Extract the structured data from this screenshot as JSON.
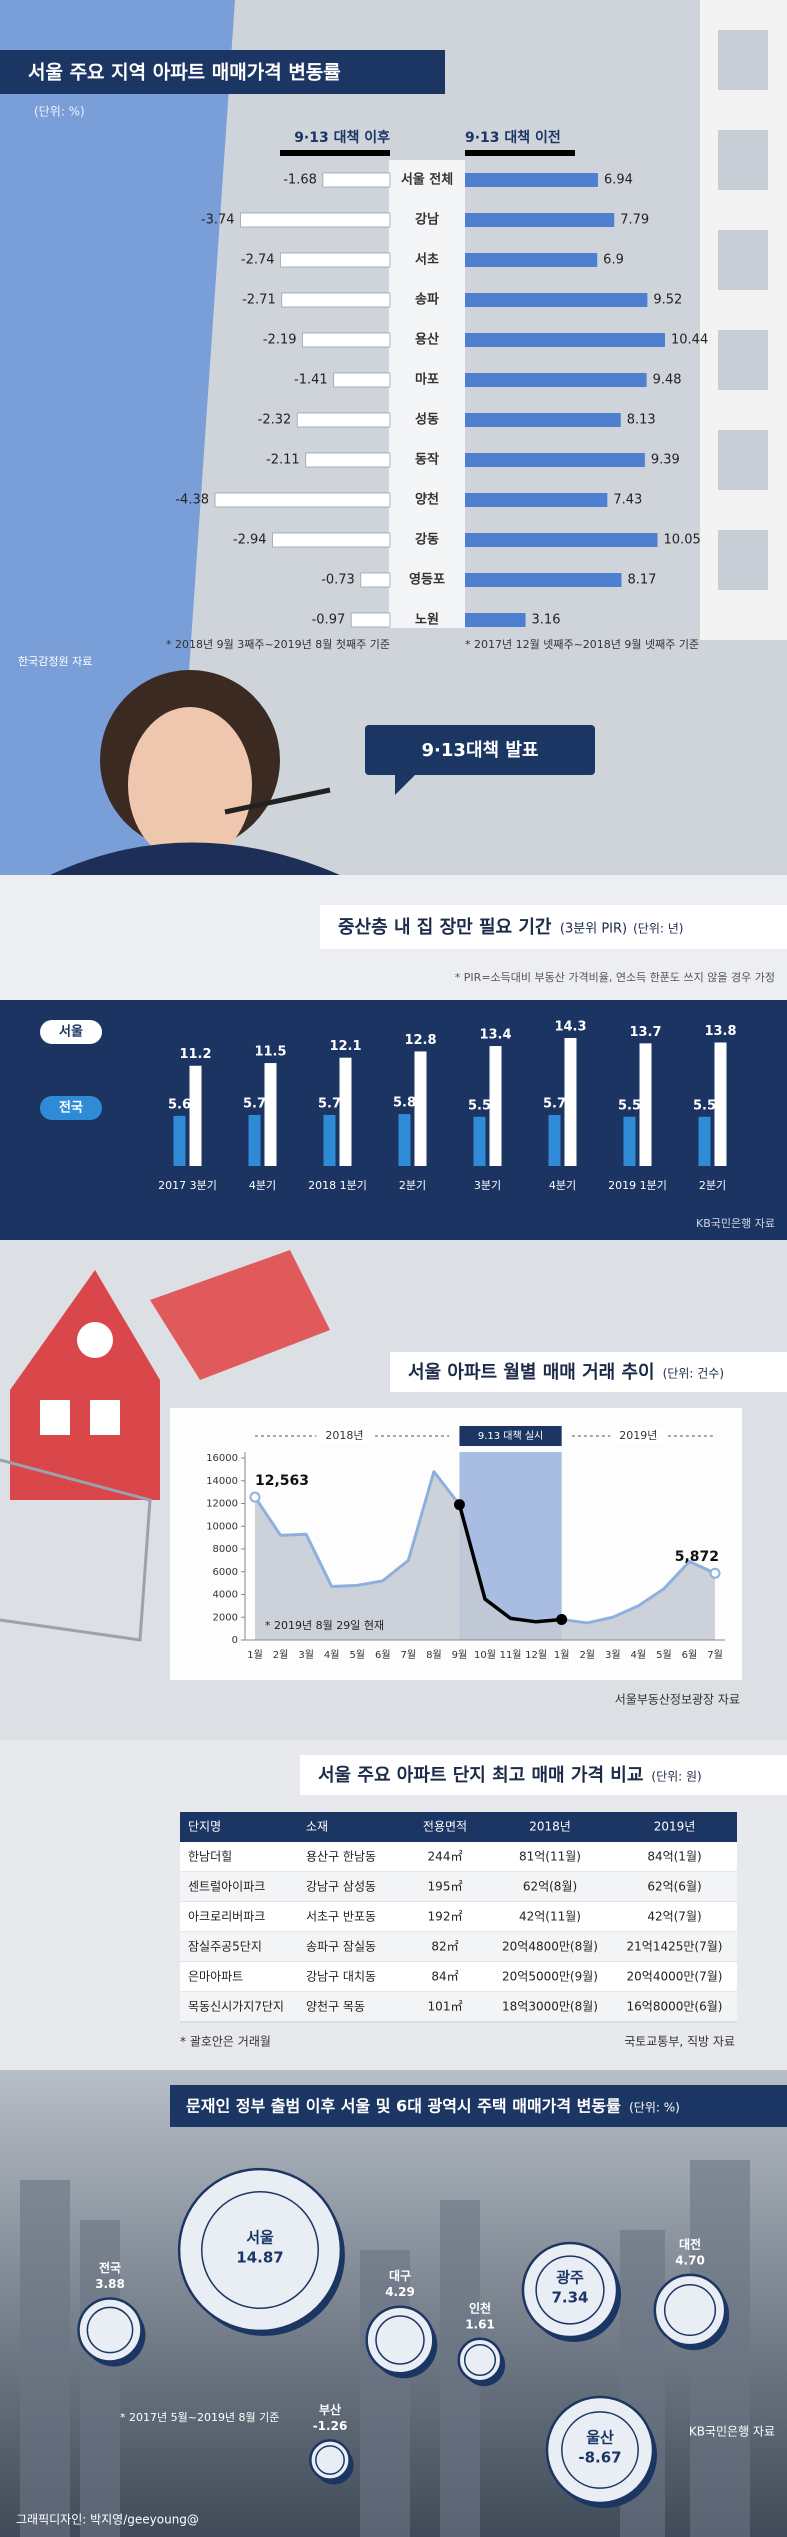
{
  "chart_data": [
    {
      "type": "bar",
      "orientation": "horizontal",
      "title": "서울 주요 지역 아파트 매매가격 변동률",
      "unit": "(단위: %)",
      "categories": [
        "서울 전체",
        "강남",
        "서초",
        "송파",
        "용산",
        "마포",
        "성동",
        "동작",
        "양천",
        "강동",
        "영등포",
        "노원"
      ],
      "series": [
        {
          "name": "9·13 대책 이전",
          "color": "#4f7fd0",
          "values": [
            6.94,
            7.79,
            6.9,
            9.52,
            10.44,
            9.48,
            8.13,
            9.39,
            7.43,
            10.05,
            8.17,
            3.16
          ]
        },
        {
          "name": "9·13 대책 이후",
          "color": "#ffffff",
          "values": [
            -1.68,
            -3.74,
            -2.74,
            -2.71,
            -2.19,
            -1.41,
            -2.32,
            -2.11,
            -4.38,
            -2.94,
            -0.73,
            -0.97
          ]
        }
      ],
      "notes": [
        "* 2017년 12월 넷째주~2018년 9월 넷째주 기준",
        "* 2018년 9월 3째주~2019년 8월 첫째주 기준"
      ],
      "source": "한국감정원 자료"
    },
    {
      "type": "bar",
      "orientation": "vertical",
      "title": "중산층 내 집 장만 필요 기간",
      "subtitle": "(3분위 PIR)",
      "unit": "(단위: 년)",
      "note": "* PIR=소득대비 부동산 가격비율, 연소득 한푼도 쓰지 않을 경우 가정",
      "categories": [
        "2017 3분기",
        "4분기",
        "2018 1분기",
        "2분기",
        "3분기",
        "4분기",
        "2019 1분기",
        "2분기"
      ],
      "series": [
        {
          "name": "서울",
          "color": "#ffffff",
          "values": [
            11.2,
            11.5,
            12.1,
            12.8,
            13.4,
            14.3,
            13.7,
            13.8
          ]
        },
        {
          "name": "전국",
          "color": "#2f8bd6",
          "values": [
            5.6,
            5.7,
            5.7,
            5.8,
            5.5,
            5.7,
            5.5,
            5.5
          ]
        }
      ],
      "source": "KB국민은행 자료"
    },
    {
      "type": "line",
      "title": "서울 아파트 월별 매매 거래 추이",
      "unit": "(단위: 건수)",
      "categories": [
        "1월",
        "2월",
        "3월",
        "4월",
        "5월",
        "6월",
        "7월",
        "8월",
        "9월",
        "10월",
        "11월",
        "12월",
        "1월",
        "2월",
        "3월",
        "4월",
        "5월",
        "6월",
        "7월"
      ],
      "values": [
        12563,
        9200,
        9300,
        4700,
        4800,
        5200,
        7000,
        14800,
        11900,
        3600,
        1900,
        1600,
        1800,
        1500,
        2000,
        3000,
        4500,
        6900,
        5872
      ],
      "value_labels": [
        "12,563",
        null,
        null,
        null,
        null,
        null,
        null,
        null,
        null,
        null,
        null,
        null,
        null,
        null,
        null,
        null,
        null,
        null,
        "5,872"
      ],
      "color": "#8fb0dd",
      "highlight_color": "#000000",
      "area_color": "#c4cad3",
      "band_color": "#a9bde2",
      "ylim": [
        0,
        16000
      ],
      "yticks": [
        0,
        2000,
        4000,
        6000,
        8000,
        10000,
        12000,
        14000,
        16000
      ],
      "grid": false,
      "annotations": {
        "year_2018": "2018년",
        "policy": "9.13 대책 실시",
        "year_2019": "2019년",
        "note": "* 2019년 8월 29일 현재"
      },
      "source": "서울부동산정보광장 자료"
    },
    {
      "type": "bubble",
      "title": "문재인 정부 출범 이후 서울 및 6대 광역시 주택 매매가격 변동률",
      "unit": "(단위: %)",
      "categories": [
        "전국",
        "서울",
        "대구",
        "인천",
        "광주",
        "대전",
        "부산",
        "울산"
      ],
      "values": [
        3.88,
        14.87,
        4.29,
        1.61,
        7.34,
        4.7,
        -1.26,
        -8.67
      ],
      "value_labels": [
        null,
        null,
        null,
        null,
        null,
        "4.70",
        null,
        null
      ],
      "color": "#1c3664",
      "note": "* 2017년 5월~2019년 8월 기준",
      "source": "KB국민은행 자료"
    }
  ],
  "table": {
    "title": "서울 주요 아파트 단지 최고 매매 가격 비교",
    "unit": "(단위: 원)",
    "header": [
      "단지명",
      "소재",
      "전용면적",
      "2018년",
      "2019년"
    ],
    "rows": [
      [
        "한남더힐",
        "용산구 한남동",
        "244㎡",
        "81억(11월)",
        "84억(1월)"
      ],
      [
        "센트럴아이파크",
        "강남구 삼성동",
        "195㎡",
        "62억(8월)",
        "62억(6월)"
      ],
      [
        "아크로리버파크",
        "서초구 반포동",
        "192㎡",
        "42억(11월)",
        "42억(7월)"
      ],
      [
        "잠실주공5단지",
        "송파구 잠실동",
        "82㎡",
        "20억4800만(8월)",
        "21억1425만(7월)"
      ],
      [
        "은마아파트",
        "강남구 대치동",
        "84㎡",
        "20억5000만(9월)",
        "20억4000만(7월)"
      ],
      [
        "목동신시가지7단지",
        "양천구 목동",
        "101㎡",
        "18억3000만(8월)",
        "16억8000만(6월)"
      ]
    ],
    "note": "* 괄호안은 거래월",
    "source": "국토교통부, 직방 자료"
  },
  "speech_bubble": "9·13대책 발표",
  "credit": "그래픽디자인: 박지영/geeyoung@"
}
